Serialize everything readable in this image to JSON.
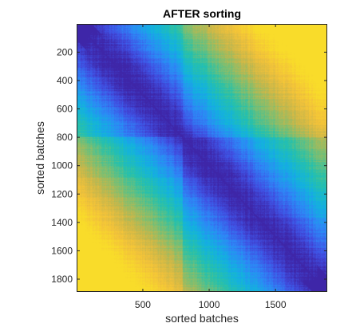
{
  "chart_data": {
    "type": "heatmap",
    "title": "AFTER sorting",
    "xlabel": "sorted batches",
    "ylabel": "sorted batches",
    "xlim": [
      1,
      1890
    ],
    "ylim": [
      1,
      1890
    ],
    "y_direction": "reversed",
    "colormap": "parula",
    "colormap_stops": [
      "#3e26a8",
      "#4050e3",
      "#2e87f7",
      "#12b2e0",
      "#27c1aa",
      "#7abf73",
      "#c8b74a",
      "#f3c23a",
      "#f9dc2a"
    ],
    "xticks": [
      500,
      1000,
      1500
    ],
    "yticks": [
      200,
      400,
      600,
      800,
      1000,
      1200,
      1400,
      1600,
      1800
    ],
    "xtick_labels": [
      "500",
      "1000",
      "1500"
    ],
    "ytick_labels": [
      "200",
      "400",
      "600",
      "800",
      "1000",
      "1200",
      "1400",
      "1600",
      "1800"
    ],
    "matrix_description_blocks": [
      {
        "range": [
          1,
          800
        ],
        "level": 0.3
      },
      {
        "range": [
          800,
          1890
        ],
        "level": 0.3
      }
    ],
    "diagonal_level": 0.0,
    "far_corner_level": 0.82,
    "grid": false,
    "legend": false
  }
}
